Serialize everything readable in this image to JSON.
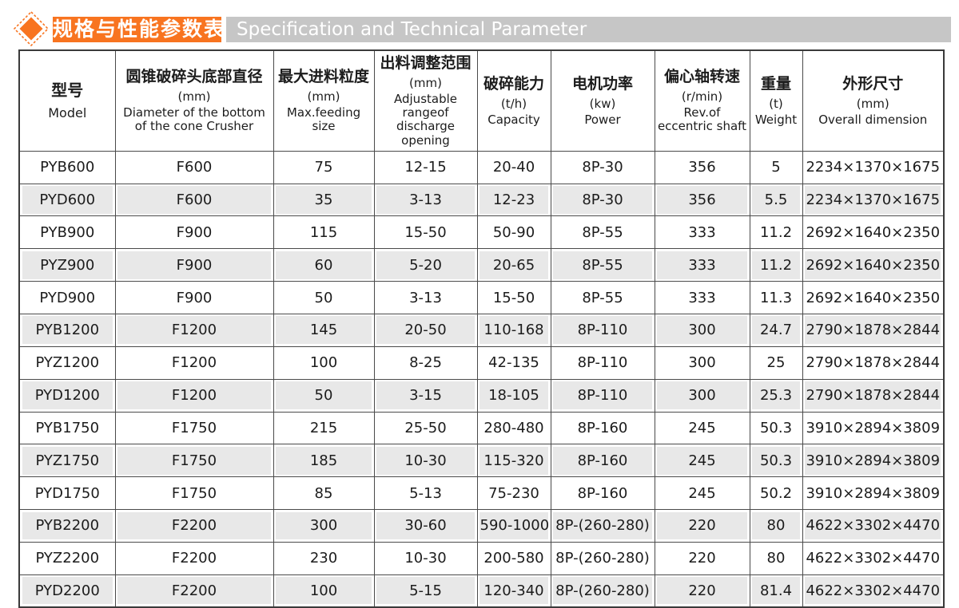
{
  "colors": {
    "accent_orange": "#f87420",
    "en_bar_gray": "#c6c6c6",
    "row_stripe_gray": "#e8e8e8",
    "table_border": "#4a4a4a",
    "text": "#1c1c1c"
  },
  "header": {
    "diamond_icon": "orange-diamond-bullet",
    "zh_title": "规格与性能参数表",
    "en_title": "Specification and Technical Parameter"
  },
  "table": {
    "columns": [
      {
        "zh": "型号",
        "unit": "",
        "en": "Model"
      },
      {
        "zh": "圆锥破碎头底部直径",
        "unit": "(mm)",
        "en": "Diameter of the bottom of the cone Crusher"
      },
      {
        "zh": "最大进料粒度",
        "unit": "(mm)",
        "en": "Max.feeding size"
      },
      {
        "zh": "出料调整范围",
        "unit": "(mm)",
        "en": "Adjustable rangeof discharge opening"
      },
      {
        "zh": "破碎能力",
        "unit": "(t/h)",
        "en": "Capacity"
      },
      {
        "zh": "电机功率",
        "unit": "(kw)",
        "en": "Power"
      },
      {
        "zh": "偏心轴转速",
        "unit": "(r/min)",
        "en": "Rev.of eccentric shaft"
      },
      {
        "zh": "重量",
        "unit": "(t)",
        "en": "Weight"
      },
      {
        "zh": "外形尺寸",
        "unit": "(mm)",
        "en": "Overall dimension"
      }
    ],
    "rows": [
      [
        "PYB600",
        "F600",
        "75",
        "12-15",
        "20-40",
        "8P-30",
        "356",
        "5",
        "2234×1370×1675"
      ],
      [
        "PYD600",
        "F600",
        "35",
        "3-13",
        "12-23",
        "8P-30",
        "356",
        "5.5",
        "2234×1370×1675"
      ],
      [
        "PYB900",
        "F900",
        "115",
        "15-50",
        "50-90",
        "8P-55",
        "333",
        "11.2",
        "2692×1640×2350"
      ],
      [
        "PYZ900",
        "F900",
        "60",
        "5-20",
        "20-65",
        "8P-55",
        "333",
        "11.2",
        "2692×1640×2350"
      ],
      [
        "PYD900",
        "F900",
        "50",
        "3-13",
        "15-50",
        "8P-55",
        "333",
        "11.3",
        "2692×1640×2350"
      ],
      [
        "PYB1200",
        "F1200",
        "145",
        "20-50",
        "110-168",
        "8P-110",
        "300",
        "24.7",
        "2790×1878×2844"
      ],
      [
        "PYZ1200",
        "F1200",
        "100",
        "8-25",
        "42-135",
        "8P-110",
        "300",
        "25",
        "2790×1878×2844"
      ],
      [
        "PYD1200",
        "F1200",
        "50",
        "3-15",
        "18-105",
        "8P-110",
        "300",
        "25.3",
        "2790×1878×2844"
      ],
      [
        "PYB1750",
        "F1750",
        "215",
        "25-50",
        "280-480",
        "8P-160",
        "245",
        "50.3",
        "3910×2894×3809"
      ],
      [
        "PYZ1750",
        "F1750",
        "185",
        "10-30",
        "115-320",
        "8P-160",
        "245",
        "50.3",
        "3910×2894×3809"
      ],
      [
        "PYD1750",
        "F1750",
        "85",
        "5-13",
        "75-230",
        "8P-160",
        "245",
        "50.2",
        "3910×2894×3809"
      ],
      [
        "PYB2200",
        "F2200",
        "300",
        "30-60",
        "590-1000",
        "8P-(260-280)",
        "220",
        "80",
        "4622×3302×4470"
      ],
      [
        "PYZ2200",
        "F2200",
        "230",
        "10-30",
        "200-580",
        "8P-(260-280)",
        "220",
        "80",
        "4622×3302×4470"
      ],
      [
        "PYD2200",
        "F2200",
        "100",
        "5-15",
        "120-340",
        "8P-(260-280)",
        "220",
        "81.4",
        "4622×3302×4470"
      ]
    ]
  }
}
